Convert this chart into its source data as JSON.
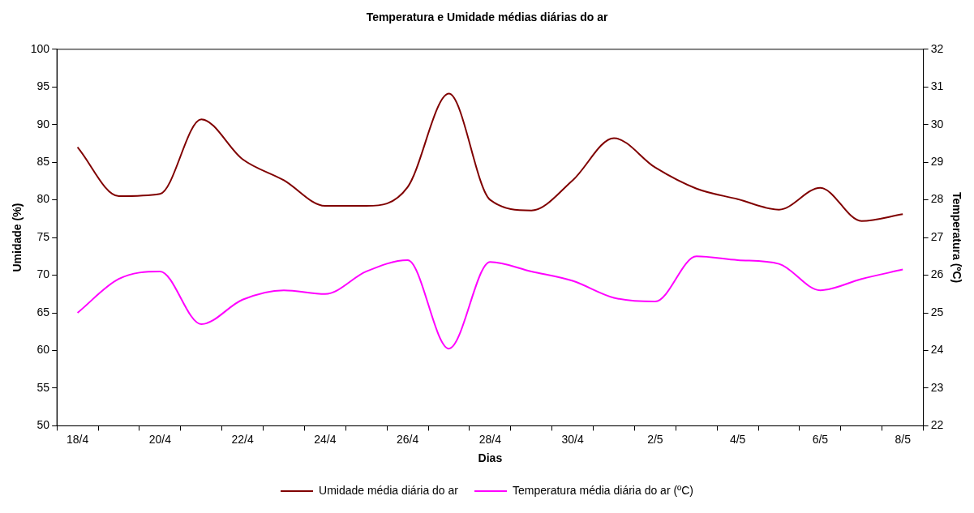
{
  "chart_data": {
    "type": "line",
    "title": "Temperatura e Umidade médias diárias do ar",
    "xlabel": "Dias",
    "ylabel": "Umidade (%)",
    "y2label": "Temperatura (ºC)",
    "categories": [
      "18/4",
      null,
      "20/4",
      null,
      "22/4",
      null,
      "24/4",
      null,
      "26/4",
      null,
      "28/4",
      null,
      "30/4",
      null,
      "2/5",
      null,
      "4/5",
      null,
      "6/5",
      null,
      "8/5"
    ],
    "series": [
      {
        "name": "Umidade média diária do ar",
        "color": "#800000",
        "values": [
          87.0,
          80.5,
          80.8,
          90.7,
          85.4,
          82.6,
          79.2,
          79.2,
          81.7,
          94.1,
          80.0,
          78.6,
          82.6,
          88.2,
          84.3,
          81.5,
          80.1,
          78.7,
          81.6,
          77.2,
          78.1
        ]
      },
      {
        "name": "Temperatura média diária do ar (ºC)",
        "color": "#ff00ff",
        "axis": "y2",
        "values": [
          25.0,
          25.9,
          26.1,
          24.7,
          25.35,
          25.6,
          25.5,
          26.1,
          26.4,
          24.05,
          26.35,
          26.1,
          25.85,
          25.4,
          25.3,
          26.5,
          26.4,
          26.3,
          25.6,
          25.9,
          26.15
        ]
      }
    ],
    "ylim": [
      50,
      100
    ],
    "yticks": [
      50,
      55,
      60,
      65,
      70,
      75,
      80,
      85,
      90,
      95,
      100
    ],
    "y2lim": [
      22,
      32
    ],
    "y2ticks": [
      22,
      23,
      24,
      25,
      26,
      27,
      28,
      29,
      30,
      31,
      32
    ],
    "grid": false,
    "legend": "bottom",
    "marker": "none",
    "line_style": "solid"
  }
}
